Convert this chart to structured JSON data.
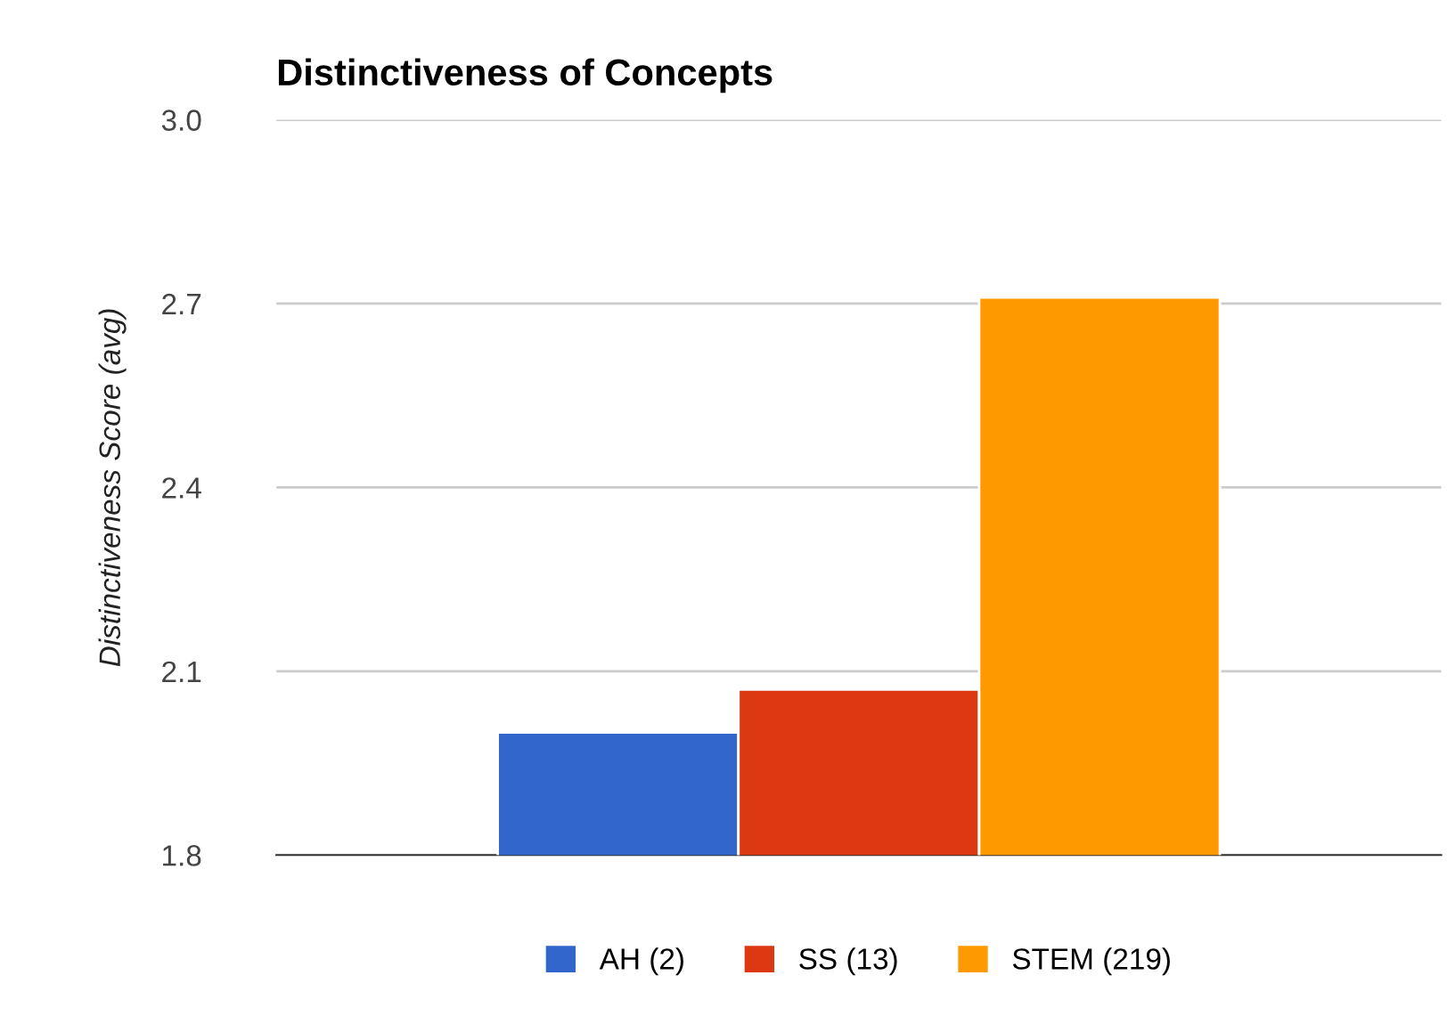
{
  "chart_data": {
    "type": "bar",
    "title": "Distinctiveness of Concepts",
    "ylabel": "Distinctiveness Score (avg)",
    "categories": [
      null
    ],
    "series": [
      {
        "name": "AH (2)",
        "color": "#3366cc",
        "values": [
          2.0
        ]
      },
      {
        "name": "SS (13)",
        "color": "#dc3912",
        "values": [
          2.07
        ]
      },
      {
        "name": "STEM (219)",
        "color": "#ff9900",
        "values": [
          2.71
        ]
      }
    ],
    "ylim": [
      1.8,
      3.0
    ],
    "yticks": [
      {
        "value": 1.8,
        "label": "1.8"
      },
      {
        "value": 2.1,
        "label": "2.1"
      },
      {
        "value": 2.4,
        "label": "2.4"
      },
      {
        "value": 2.7,
        "label": "2.7"
      },
      {
        "value": 3.0,
        "label": "3.0"
      }
    ],
    "grid": "y",
    "legend": "bottom"
  }
}
